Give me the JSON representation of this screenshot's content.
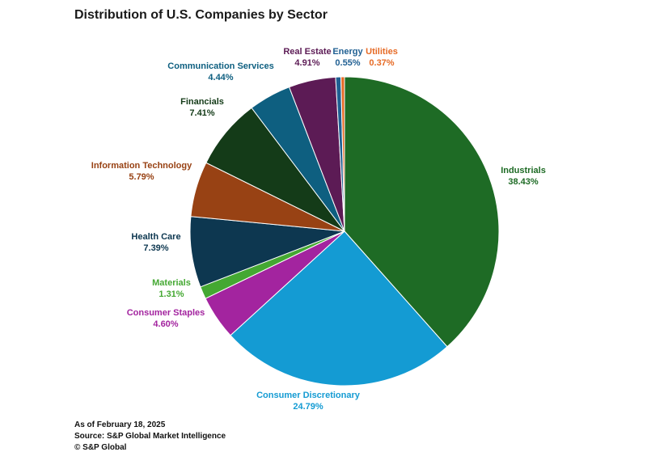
{
  "chart_data": {
    "type": "pie",
    "title": "Distribution of U.S. Companies by Sector",
    "categories": [
      "Industrials",
      "Consumer Discretionary",
      "Consumer Staples",
      "Materials",
      "Health Care",
      "Information Technology",
      "Financials",
      "Communication Services",
      "Real Estate",
      "Energy",
      "Utilities"
    ],
    "values": [
      38.43,
      24.79,
      4.6,
      1.31,
      7.39,
      5.79,
      7.41,
      4.44,
      4.91,
      0.55,
      0.37
    ],
    "value_labels": [
      "38.43%",
      "24.79%",
      "4.60%",
      "1.31%",
      "7.39%",
      "5.79%",
      "7.41%",
      "4.44%",
      "4.91%",
      "0.55%",
      "0.37%"
    ],
    "colors": [
      "#1e6b25",
      "#149bd3",
      "#a3249f",
      "#44a832",
      "#0d3750",
      "#984214",
      "#143b18",
      "#0e5f80",
      "#5c1b55",
      "#1f5f92",
      "#e66a25"
    ],
    "label_colors": [
      "#1e6b25",
      "#149bd3",
      "#a3249f",
      "#44a832",
      "#0d3750",
      "#984214",
      "#143b18",
      "#0e5f80",
      "#5c1b55",
      "#1f5f92",
      "#e66a25"
    ]
  },
  "footer": {
    "as_of": "As of February 18, 2025",
    "source": "Source: S&P Global Market Intelligence",
    "copyright": "© S&P Global"
  }
}
